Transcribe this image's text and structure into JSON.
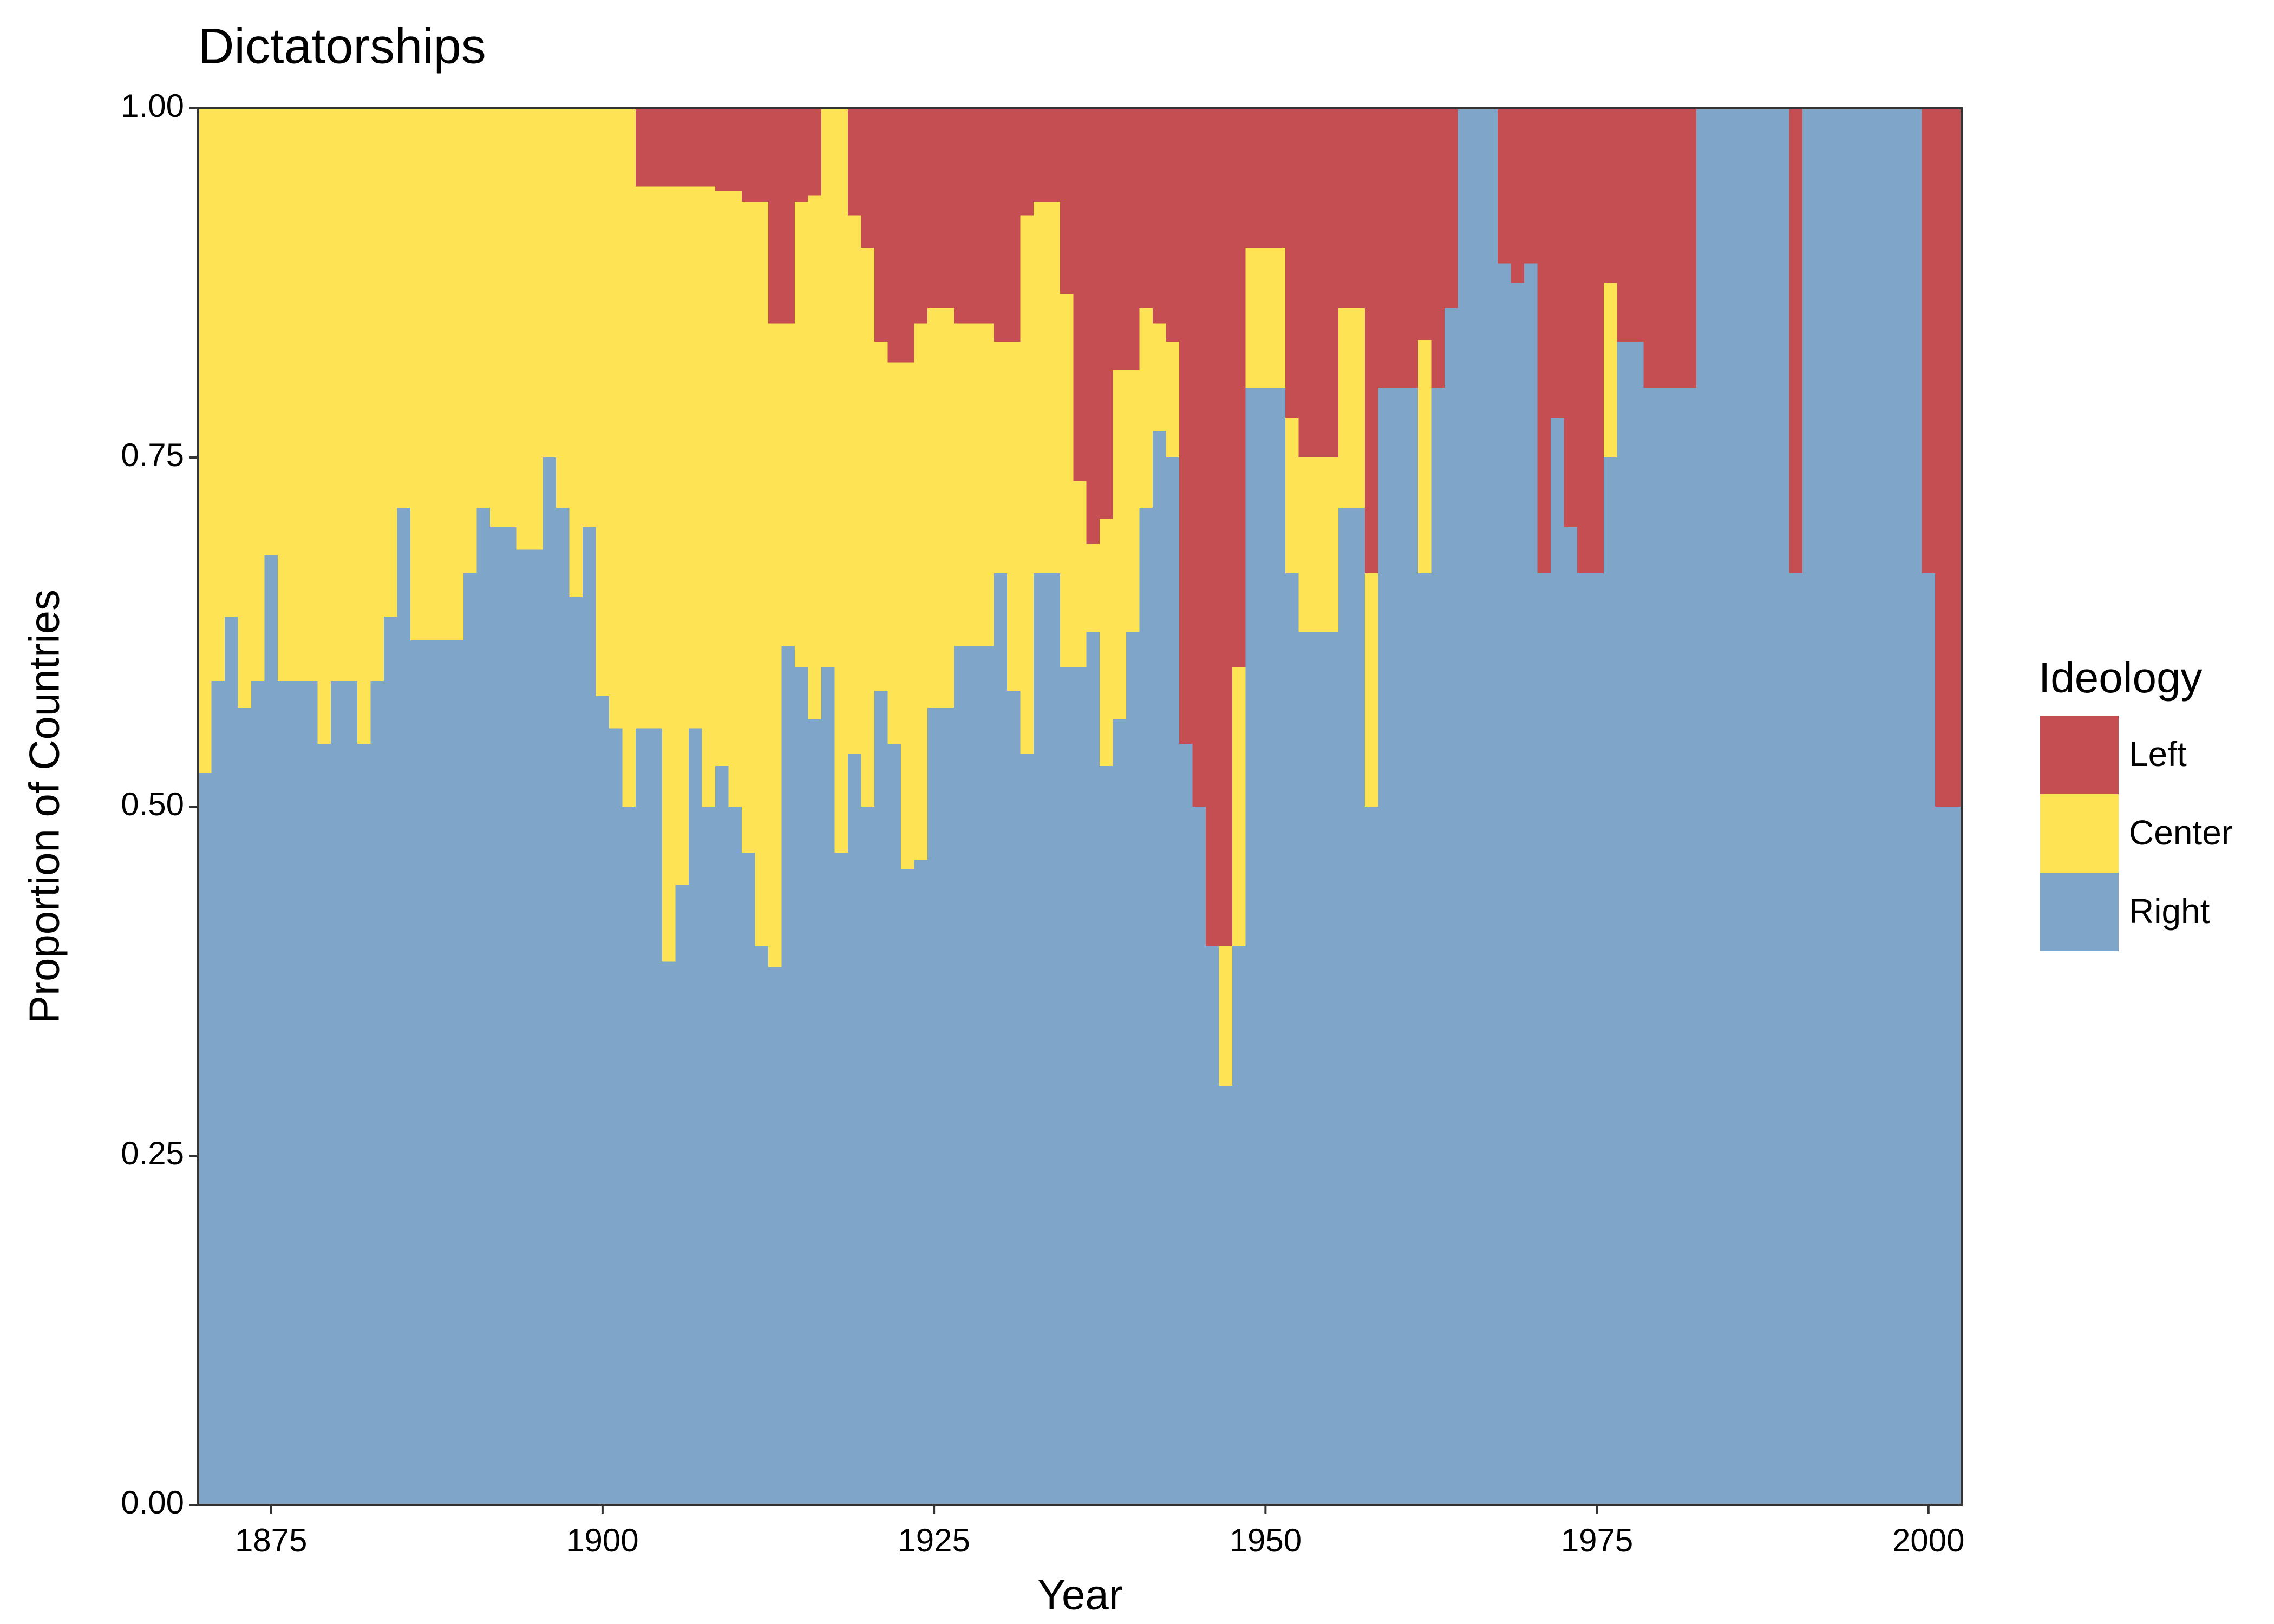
{
  "chart_data": {
    "type": "stacked_bar",
    "title": "Dictatorships",
    "x_label": "Year",
    "y_label": "Proportion of Countries",
    "legend_title": "Ideology",
    "x": [
      1870,
      1871,
      1872,
      1873,
      1874,
      1875,
      1876,
      1877,
      1878,
      1879,
      1880,
      1881,
      1882,
      1883,
      1884,
      1885,
      1886,
      1887,
      1888,
      1889,
      1890,
      1891,
      1892,
      1893,
      1894,
      1895,
      1896,
      1897,
      1898,
      1899,
      1900,
      1901,
      1902,
      1903,
      1904,
      1905,
      1906,
      1907,
      1908,
      1909,
      1910,
      1911,
      1912,
      1913,
      1914,
      1915,
      1916,
      1917,
      1918,
      1919,
      1920,
      1921,
      1922,
      1923,
      1924,
      1925,
      1926,
      1927,
      1928,
      1929,
      1930,
      1931,
      1932,
      1933,
      1934,
      1935,
      1936,
      1937,
      1938,
      1939,
      1940,
      1941,
      1942,
      1943,
      1944,
      1945,
      1946,
      1947,
      1948,
      1949,
      1950,
      1951,
      1952,
      1953,
      1954,
      1955,
      1956,
      1957,
      1958,
      1959,
      1960,
      1961,
      1962,
      1963,
      1964,
      1965,
      1966,
      1967,
      1968,
      1969,
      1970,
      1971,
      1972,
      1973,
      1974,
      1975,
      1976,
      1977,
      1978,
      1979,
      1980,
      1981,
      1982,
      1983,
      1984,
      1985,
      1986,
      1987,
      1988,
      1989,
      1990,
      1991,
      1992,
      1993,
      1994,
      1995,
      1996,
      1997,
      1998,
      1999,
      2000,
      2001,
      2002
    ],
    "series": [
      {
        "name": "Right",
        "color": "#7fa5c9",
        "values": [
          0.524,
          0.59,
          0.636,
          0.571,
          0.59,
          0.68,
          0.59,
          0.59,
          0.59,
          0.545,
          0.59,
          0.59,
          0.545,
          0.59,
          0.636,
          0.714,
          0.619,
          0.619,
          0.619,
          0.619,
          0.667,
          0.714,
          0.7,
          0.7,
          0.684,
          0.684,
          0.75,
          0.714,
          0.65,
          0.7,
          0.579,
          0.556,
          0.5,
          0.556,
          0.556,
          0.389,
          0.444,
          0.556,
          0.5,
          0.529,
          0.5,
          0.467,
          0.4,
          0.385,
          0.615,
          0.6,
          0.5625,
          0.6,
          0.467,
          0.538,
          0.5,
          0.583,
          0.545,
          0.455,
          0.462,
          0.571,
          0.571,
          0.615,
          0.615,
          0.615,
          0.667,
          0.583,
          0.538,
          0.667,
          0.667,
          0.6,
          0.6,
          0.625,
          0.529,
          0.5625,
          0.625,
          0.714,
          0.769,
          0.75,
          0.545,
          0.5,
          0.4,
          0.3,
          0.4,
          0.8,
          0.8,
          0.8,
          0.667,
          0.625,
          0.625,
          0.625,
          0.714,
          0.714,
          0.5,
          0.8,
          0.8,
          0.8,
          0.667,
          0.8,
          0.857,
          1,
          1,
          1,
          0.889,
          0.875,
          0.889,
          0.667,
          0.778,
          0.7,
          0.667,
          0.667,
          0.75,
          0.833,
          0.833,
          0.8,
          0.8,
          0.8,
          0.8,
          1,
          1,
          1,
          1,
          1,
          1,
          1,
          0.667,
          1,
          1,
          1,
          1,
          1,
          1,
          1,
          1,
          1,
          0.667,
          0.5,
          0.5
        ]
      },
      {
        "name": "Center",
        "color": "#fee354",
        "values": [
          0.476,
          0.41,
          0.364,
          0.429,
          0.41,
          0.32,
          0.41,
          0.41,
          0.41,
          0.455,
          0.41,
          0.41,
          0.455,
          0.41,
          0.364,
          0.286,
          0.381,
          0.381,
          0.381,
          0.381,
          0.333,
          0.286,
          0.3,
          0.3,
          0.316,
          0.316,
          0.25,
          0.286,
          0.35,
          0.3,
          0.421,
          0.444,
          0.5,
          0.388,
          0.388,
          0.555,
          0.5,
          0.388,
          0.444,
          0.412,
          0.441,
          0.466,
          0.533,
          0.461,
          0.231,
          0.333,
          0.375,
          0.4,
          0.533,
          0.385,
          0.4,
          0.25,
          0.273,
          0.363,
          0.384,
          0.286,
          0.286,
          0.231,
          0.231,
          0.231,
          0.166,
          0.25,
          0.385,
          0.266,
          0.266,
          0.267,
          0.133,
          0.063,
          0.177,
          0.25,
          0.1875,
          0.143,
          0.077,
          0.083,
          0,
          0,
          0,
          0.1,
          0.2,
          0.1,
          0.1,
          0.1,
          0.111,
          0.125,
          0.125,
          0.125,
          0.143,
          0.143,
          0.167,
          0,
          0,
          0,
          0.167,
          0,
          0,
          0,
          0,
          0,
          0,
          0,
          0,
          0,
          0,
          0,
          0,
          0,
          0.125,
          0,
          0,
          0,
          0,
          0,
          0,
          0,
          0,
          0,
          0,
          0,
          0,
          0,
          0,
          0,
          0,
          0,
          0,
          0,
          0,
          0,
          0,
          0,
          0,
          0,
          0
        ]
      },
      {
        "name": "Left",
        "color": "#c44e52",
        "values": [
          0,
          0,
          0,
          0,
          0,
          0,
          0,
          0,
          0,
          0,
          0,
          0,
          0,
          0,
          0,
          0,
          0,
          0,
          0,
          0,
          0,
          0,
          0,
          0,
          0,
          0,
          0,
          0,
          0,
          0,
          0,
          0,
          0,
          0.056,
          0.056,
          0.056,
          0.056,
          0.056,
          0.056,
          0.059,
          0.059,
          0.067,
          0.067,
          0.154,
          0.154,
          0.067,
          0.0625,
          0,
          0,
          0.077,
          0.1,
          0.167,
          0.182,
          0.182,
          0.154,
          0.143,
          0.143,
          0.154,
          0.154,
          0.154,
          0.167,
          0.167,
          0.077,
          0.067,
          0.067,
          0.133,
          0.267,
          0.312,
          0.294,
          0.1875,
          0.1875,
          0.143,
          0.154,
          0.167,
          0.455,
          0.5,
          0.6,
          0.6,
          0.4,
          0.1,
          0.1,
          0.1,
          0.222,
          0.25,
          0.25,
          0.25,
          0.143,
          0.143,
          0.333,
          0.2,
          0.2,
          0.2,
          0.166,
          0.2,
          0.143,
          0,
          0,
          0,
          0.111,
          0.125,
          0.111,
          0.333,
          0.222,
          0.3,
          0.333,
          0.333,
          0.125,
          0.167,
          0.167,
          0.2,
          0.2,
          0.2,
          0.2,
          0,
          0,
          0,
          0,
          0,
          0,
          0,
          0.333,
          0,
          0,
          0,
          0,
          0,
          0,
          0,
          0,
          0,
          0.333,
          0.5,
          0.5
        ]
      }
    ],
    "xlim": [
      1869.5,
      2002.5
    ],
    "ylim": [
      0,
      1
    ],
    "xticks": [
      1875,
      1900,
      1925,
      1950,
      1975,
      2000
    ],
    "yticks": [
      {
        "value": 0,
        "label": "0.00"
      },
      {
        "value": 0.25,
        "label": "0.25"
      },
      {
        "value": 0.5,
        "label": "0.50"
      },
      {
        "value": 0.75,
        "label": "0.75"
      },
      {
        "value": 1,
        "label": "1.00"
      }
    ],
    "grid": false,
    "legend": "right"
  }
}
